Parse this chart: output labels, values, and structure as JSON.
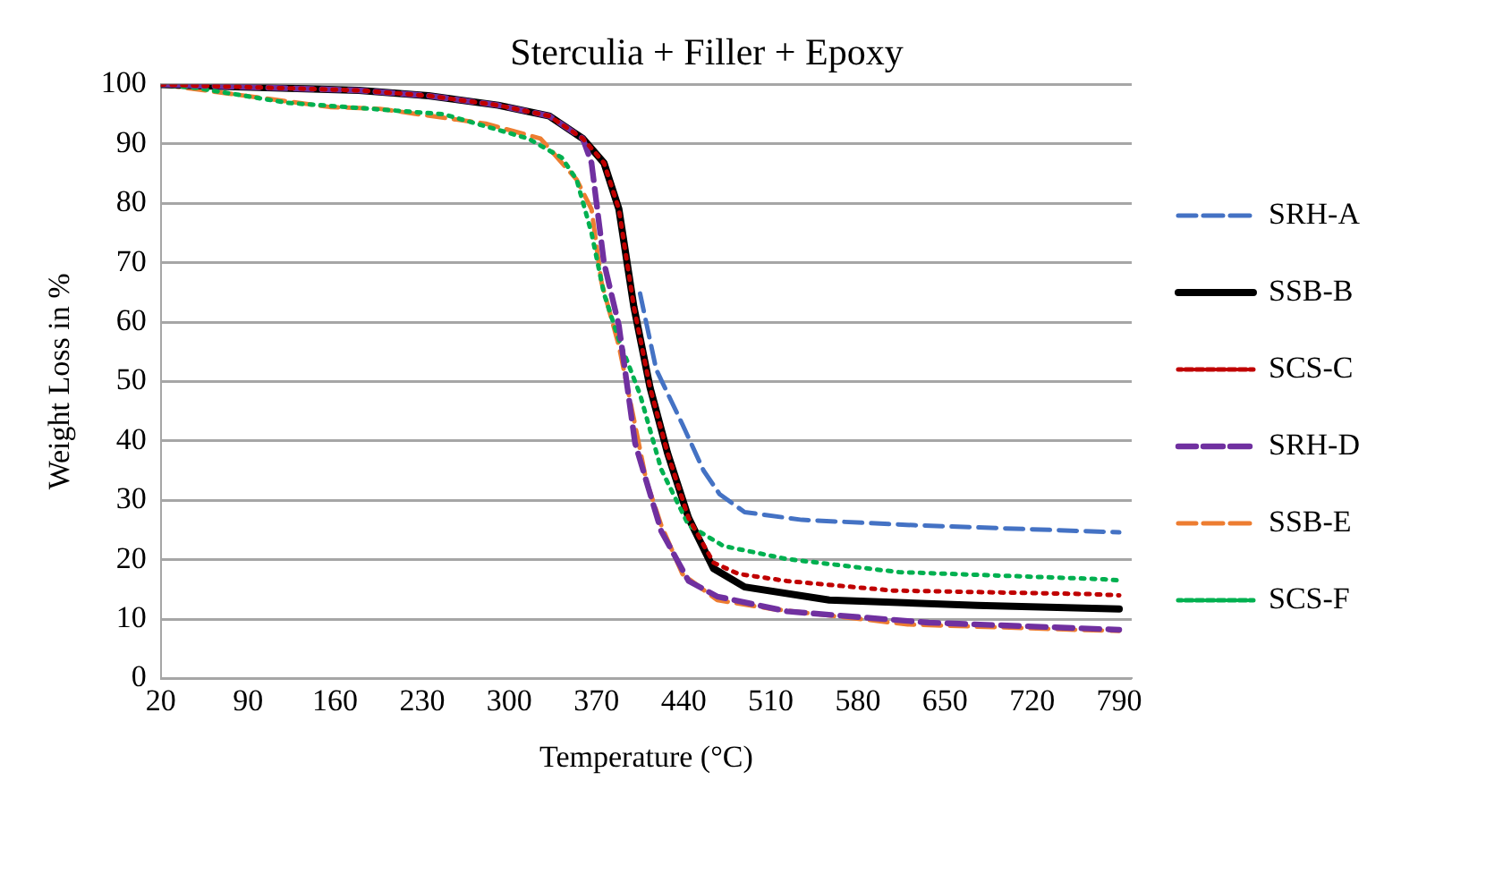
{
  "chart_data": {
    "type": "line",
    "title": "Sterculia + Filler + Epoxy",
    "xlabel": "Temperature (°C)",
    "ylabel": "Weight Loss in %",
    "xlim": [
      20,
      800
    ],
    "xticks": [
      20,
      90,
      160,
      230,
      300,
      370,
      440,
      510,
      580,
      650,
      720,
      790
    ],
    "ylim": [
      0,
      100
    ],
    "yticks": [
      0,
      10,
      20,
      30,
      40,
      50,
      60,
      70,
      80,
      90,
      100
    ],
    "grid": "y",
    "legend": "right",
    "marker": "none",
    "series": [
      {
        "name": "SRH-A",
        "color": "#4472c4",
        "line_style": "dashed",
        "x": [
          405,
          418,
          439,
          456,
          469,
          489,
          535,
          625,
          790
        ],
        "values": [
          64.8,
          52,
          42.8,
          35,
          31,
          28,
          26.7,
          25.8,
          24.6
        ]
      },
      {
        "name": "SSB-B",
        "color": "#000000",
        "line_style": "solid",
        "x": [
          20,
          66,
          179,
          235,
          291,
          332,
          359,
          376,
          388,
          400,
          413,
          427,
          444,
          464,
          489,
          557,
          676,
          790
        ],
        "values": [
          100,
          99.7,
          99,
          98.1,
          96.5,
          94.7,
          90.9,
          86.8,
          79,
          62.6,
          49,
          38,
          27,
          18.5,
          15.4,
          13.2,
          12.3,
          11.7
        ]
      },
      {
        "name": "SCS-C",
        "color": "#c00000",
        "line_style": "dotted",
        "x": [
          20,
          66,
          179,
          235,
          291,
          332,
          359,
          376,
          388,
          400,
          413,
          427,
          444,
          464,
          484,
          523,
          608,
          766,
          790
        ],
        "values": [
          100,
          99.7,
          99,
          98.1,
          96.5,
          94.7,
          90.9,
          86.8,
          79,
          62.6,
          49,
          38,
          27,
          19.5,
          17.6,
          16.4,
          14.8,
          14.2,
          14
        ]
      },
      {
        "name": "SRH-D",
        "color": "#7030a0",
        "line_style": "dashed",
        "x": [
          20,
          66,
          179,
          235,
          291,
          332,
          359,
          366,
          376,
          388,
          401,
          422,
          444,
          467,
          523,
          637,
          790
        ],
        "values": [
          100,
          99.7,
          99,
          98.1,
          96.5,
          94.7,
          90.9,
          86.8,
          70,
          59.4,
          39.6,
          24.8,
          16.4,
          13.8,
          11.3,
          9.4,
          8.2
        ]
      },
      {
        "name": "SSB-E",
        "color": "#ed7d31",
        "line_style": "dashed",
        "x": [
          20,
          66,
          156,
          196,
          281,
          325,
          354,
          366,
          374,
          388,
          400,
          410,
          422,
          439,
          467,
          511,
          620,
          756,
          790
        ],
        "values": [
          100,
          98.7,
          96.2,
          95.9,
          93.4,
          90.9,
          84,
          79,
          66.7,
          56,
          43.7,
          33.3,
          25.8,
          17.6,
          13.2,
          11.7,
          9.1,
          8.2,
          8
        ]
      },
      {
        "name": "SCS-F",
        "color": "#00b050",
        "line_style": "dotted",
        "x": [
          20,
          49,
          122,
          189,
          247,
          315,
          342,
          354,
          366,
          376,
          388,
          405,
          422,
          444,
          472,
          523,
          613,
          778,
          790
        ],
        "values": [
          100,
          99.4,
          96.9,
          95.9,
          95,
          90.9,
          87.7,
          84,
          75,
          64.8,
          57,
          47.8,
          35.2,
          25.8,
          22.3,
          20.1,
          17.9,
          16.7,
          16.5
        ]
      }
    ]
  }
}
